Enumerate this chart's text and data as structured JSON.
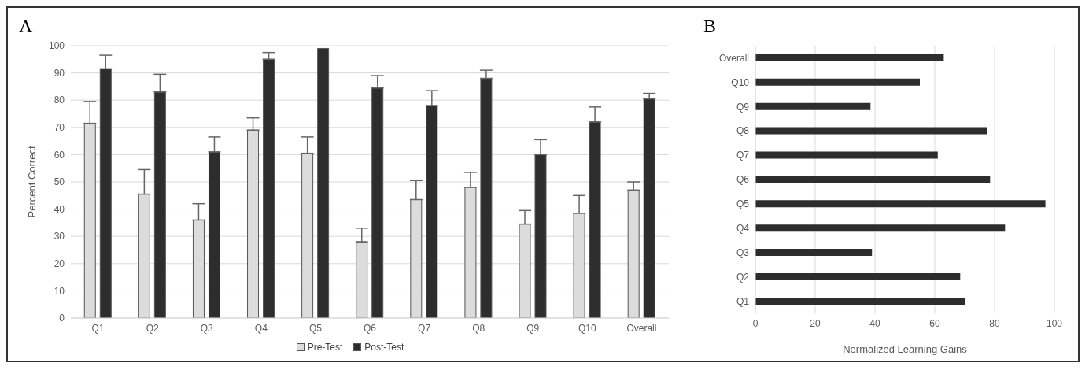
{
  "chart_data": [
    {
      "type": "bar",
      "title": "A",
      "ylabel": "Percent Correct",
      "categories": [
        "Q1",
        "Q2",
        "Q3",
        "Q4",
        "Q5",
        "Q6",
        "Q7",
        "Q8",
        "Q9",
        "Q10",
        "Overall"
      ],
      "series": [
        {
          "name": "Pre-Test",
          "color": "#dcdcdc",
          "values": [
            71.5,
            45.5,
            36,
            69,
            60.5,
            28,
            43.5,
            48,
            34.5,
            38.5,
            47
          ],
          "errors": [
            [
              71.5,
              79.5
            ],
            [
              45.5,
              54.5
            ],
            [
              36,
              42
            ],
            [
              69,
              73.5
            ],
            [
              60.5,
              66.5
            ],
            [
              28,
              33
            ],
            [
              43.5,
              50.5
            ],
            [
              48,
              53.5
            ],
            [
              34.5,
              39.5
            ],
            [
              38.5,
              45
            ],
            [
              47,
              50
            ]
          ]
        },
        {
          "name": "Post-Test",
          "color": "#2d2d2d",
          "values": [
            91.5,
            83,
            61,
            95,
            99,
            84.5,
            78,
            88,
            60,
            72,
            80.5
          ],
          "errors": [
            [
              91.5,
              96.5
            ],
            [
              83,
              89.5
            ],
            [
              61,
              66.5
            ],
            [
              95,
              97.5
            ],
            null,
            [
              84.5,
              89
            ],
            [
              78,
              83.5
            ],
            [
              88,
              91
            ],
            [
              60,
              65.5
            ],
            [
              72,
              77.5
            ],
            [
              80.5,
              82.5
            ]
          ]
        }
      ],
      "ylim": [
        0,
        100
      ],
      "yticks": [
        0,
        10,
        20,
        30,
        40,
        50,
        60,
        70,
        80,
        90,
        100
      ],
      "grid": "y",
      "legend": "bottom"
    },
    {
      "type": "bar",
      "title": "B",
      "xlabel": "Normalized Learning Gains",
      "orientation": "horizontal",
      "categories": [
        "Overall",
        "Q10",
        "Q9",
        "Q8",
        "Q7",
        "Q6",
        "Q5",
        "Q4",
        "Q3",
        "Q2",
        "Q1"
      ],
      "values": [
        63,
        55,
        38.5,
        77.5,
        61,
        78.5,
        97,
        83.5,
        39,
        68.5,
        70
      ],
      "color": "#2d2d2d",
      "xlim": [
        0,
        100
      ],
      "xticks": [
        0,
        20,
        40,
        60,
        80,
        100
      ],
      "grid": "x",
      "legend": false
    }
  ]
}
